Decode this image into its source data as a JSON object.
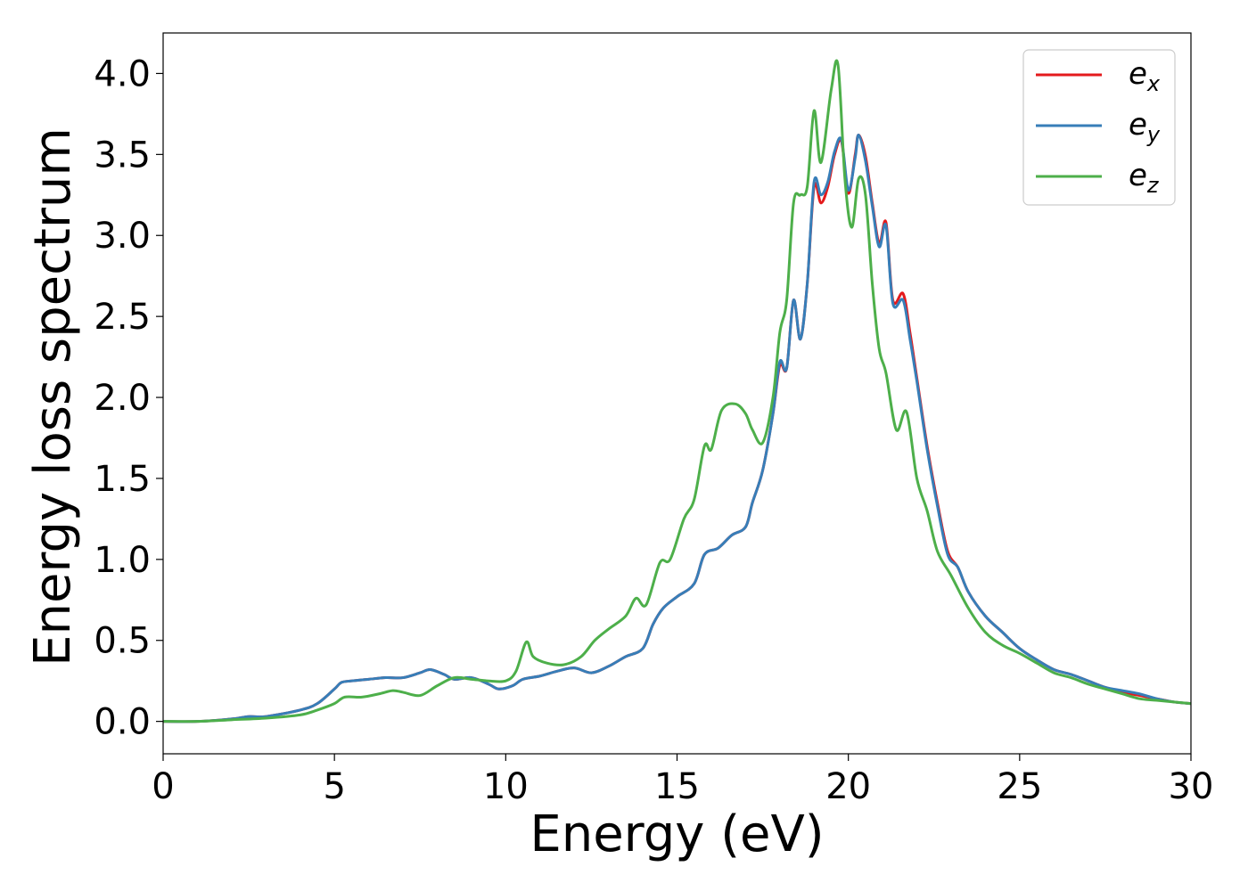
{
  "chart_data": {
    "type": "line",
    "title": "",
    "xlabel": "Energy (eV)",
    "ylabel": "Energy loss spectrum",
    "xlim": [
      0,
      30
    ],
    "ylim": [
      -0.2,
      4.25
    ],
    "xticks": [
      0,
      5,
      10,
      15,
      20,
      25,
      30
    ],
    "yticks": [
      0.0,
      0.5,
      1.0,
      1.5,
      2.0,
      2.5,
      3.0,
      3.5,
      4.0
    ],
    "xtick_labels": [
      "0",
      "5",
      "10",
      "15",
      "20",
      "25",
      "30"
    ],
    "ytick_labels": [
      "0.0",
      "0.5",
      "1.0",
      "1.5",
      "2.0",
      "2.5",
      "3.0",
      "3.5",
      "4.0"
    ],
    "grid": false,
    "legend_position": "top-right",
    "series": [
      {
        "name": "e_x",
        "legend_base": "e",
        "legend_sub": "x",
        "color": "#e41a1c",
        "x": [
          0,
          1,
          2,
          2.5,
          3,
          4,
          4.5,
          5,
          5.2,
          5.5,
          6,
          6.5,
          7,
          7.5,
          7.8,
          8.2,
          8.5,
          9,
          9.5,
          9.8,
          10.2,
          10.5,
          11,
          11.5,
          12,
          12.5,
          13,
          13.5,
          14,
          14.3,
          14.6,
          15,
          15.5,
          15.8,
          16.2,
          16.6,
          17,
          17.2,
          17.5,
          17.8,
          18,
          18.2,
          18.4,
          18.6,
          18.8,
          19,
          19.2,
          19.4,
          19.6,
          19.8,
          20,
          20.2,
          20.3,
          20.5,
          20.7,
          20.9,
          21.1,
          21.3,
          21.6,
          21.8,
          22,
          22.3,
          22.6,
          22.9,
          23.2,
          23.5,
          24,
          24.5,
          25,
          25.5,
          26,
          26.5,
          27,
          27.5,
          28,
          28.5,
          29,
          29.5,
          30
        ],
        "y": [
          0,
          0,
          0.015,
          0.03,
          0.03,
          0.07,
          0.11,
          0.2,
          0.24,
          0.25,
          0.26,
          0.27,
          0.27,
          0.3,
          0.32,
          0.29,
          0.26,
          0.27,
          0.23,
          0.2,
          0.22,
          0.26,
          0.28,
          0.31,
          0.33,
          0.3,
          0.34,
          0.4,
          0.45,
          0.6,
          0.7,
          0.77,
          0.85,
          1.03,
          1.07,
          1.15,
          1.2,
          1.35,
          1.55,
          1.9,
          2.2,
          2.18,
          2.6,
          2.36,
          2.7,
          3.3,
          3.2,
          3.3,
          3.5,
          3.58,
          3.26,
          3.5,
          3.62,
          3.49,
          3.2,
          2.95,
          3.08,
          2.6,
          2.64,
          2.4,
          2.12,
          1.7,
          1.35,
          1.05,
          0.95,
          0.8,
          0.65,
          0.55,
          0.45,
          0.38,
          0.32,
          0.29,
          0.25,
          0.21,
          0.18,
          0.16,
          0.14,
          0.12,
          0.11
        ]
      },
      {
        "name": "e_y",
        "legend_base": "e",
        "legend_sub": "y",
        "color": "#377eb8",
        "x": [
          0,
          1,
          2,
          2.5,
          3,
          4,
          4.5,
          5,
          5.2,
          5.5,
          6,
          6.5,
          7,
          7.5,
          7.8,
          8.2,
          8.5,
          9,
          9.5,
          9.8,
          10.2,
          10.5,
          11,
          11.5,
          12,
          12.5,
          13,
          13.5,
          14,
          14.3,
          14.6,
          15,
          15.5,
          15.8,
          16.2,
          16.6,
          17,
          17.2,
          17.5,
          17.8,
          18,
          18.2,
          18.4,
          18.6,
          18.8,
          19,
          19.2,
          19.4,
          19.6,
          19.8,
          20,
          20.2,
          20.3,
          20.5,
          20.7,
          20.9,
          21.1,
          21.3,
          21.6,
          21.8,
          22,
          22.3,
          22.6,
          22.9,
          23.2,
          23.5,
          24,
          24.5,
          25,
          25.5,
          26,
          26.5,
          27,
          27.5,
          28,
          28.5,
          29,
          29.5,
          30
        ],
        "y": [
          0,
          0,
          0.015,
          0.03,
          0.03,
          0.07,
          0.11,
          0.2,
          0.24,
          0.25,
          0.26,
          0.27,
          0.27,
          0.3,
          0.32,
          0.29,
          0.26,
          0.27,
          0.23,
          0.2,
          0.22,
          0.26,
          0.28,
          0.31,
          0.33,
          0.3,
          0.34,
          0.4,
          0.45,
          0.6,
          0.7,
          0.77,
          0.85,
          1.03,
          1.07,
          1.15,
          1.2,
          1.35,
          1.55,
          1.9,
          2.22,
          2.18,
          2.6,
          2.36,
          2.7,
          3.33,
          3.25,
          3.33,
          3.52,
          3.59,
          3.28,
          3.48,
          3.62,
          3.46,
          3.18,
          2.93,
          3.06,
          2.58,
          2.6,
          2.36,
          2.1,
          1.68,
          1.33,
          1.03,
          0.95,
          0.8,
          0.65,
          0.55,
          0.45,
          0.38,
          0.32,
          0.29,
          0.25,
          0.21,
          0.19,
          0.17,
          0.14,
          0.12,
          0.11
        ]
      },
      {
        "name": "e_z",
        "legend_base": "e",
        "legend_sub": "z",
        "color": "#4daf4a",
        "x": [
          0,
          1,
          2,
          3,
          4,
          4.5,
          5,
          5.3,
          5.8,
          6.3,
          6.7,
          7,
          7.5,
          8,
          8.5,
          9,
          9.5,
          10,
          10.3,
          10.6,
          10.8,
          11.2,
          11.7,
          12.2,
          12.6,
          13,
          13.5,
          13.8,
          14.1,
          14.5,
          14.8,
          15.2,
          15.5,
          15.8,
          16,
          16.3,
          16.7,
          17,
          17.2,
          17.5,
          17.8,
          18,
          18.2,
          18.4,
          18.6,
          18.8,
          19,
          19.2,
          19.5,
          19.7,
          19.9,
          20.1,
          20.3,
          20.5,
          20.7,
          20.9,
          21.1,
          21.4,
          21.7,
          22,
          22.3,
          22.6,
          23,
          23.5,
          24,
          24.5,
          25,
          25.5,
          26,
          26.5,
          27,
          27.5,
          28,
          28.5,
          29,
          30
        ],
        "y": [
          0,
          0,
          0.01,
          0.02,
          0.04,
          0.07,
          0.11,
          0.15,
          0.15,
          0.17,
          0.19,
          0.18,
          0.16,
          0.22,
          0.27,
          0.26,
          0.25,
          0.25,
          0.31,
          0.49,
          0.4,
          0.36,
          0.35,
          0.4,
          0.5,
          0.57,
          0.65,
          0.76,
          0.72,
          0.98,
          1.0,
          1.25,
          1.37,
          1.7,
          1.68,
          1.92,
          1.96,
          1.9,
          1.8,
          1.72,
          2.0,
          2.4,
          2.6,
          3.2,
          3.25,
          3.3,
          3.77,
          3.45,
          3.9,
          4.05,
          3.35,
          3.05,
          3.35,
          3.25,
          2.7,
          2.3,
          2.15,
          1.8,
          1.91,
          1.5,
          1.3,
          1.05,
          0.9,
          0.7,
          0.55,
          0.47,
          0.42,
          0.36,
          0.3,
          0.27,
          0.23,
          0.2,
          0.17,
          0.14,
          0.13,
          0.11
        ]
      }
    ]
  }
}
